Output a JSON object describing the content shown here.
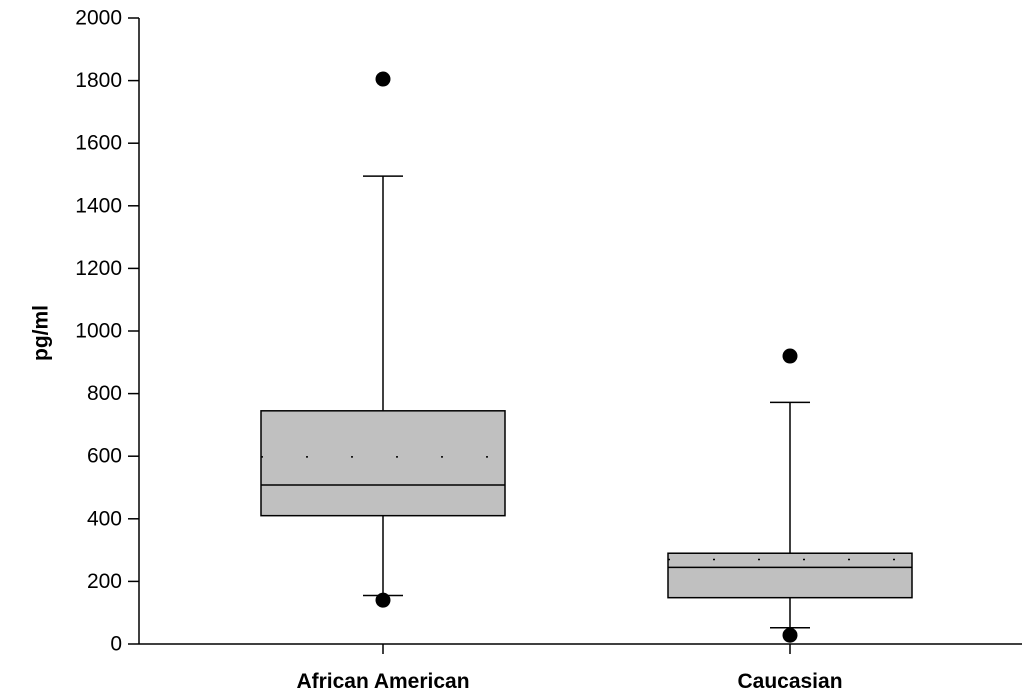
{
  "chart_data": {
    "type": "box",
    "title": "",
    "xlabel": "",
    "ylabel": "pg/ml",
    "ylim": [
      0,
      2000
    ],
    "yticks": [
      0,
      200,
      400,
      600,
      800,
      1000,
      1200,
      1400,
      1600,
      1800,
      2000
    ],
    "categories": [
      "African American",
      "Caucasian"
    ],
    "boxes": [
      {
        "category": "African American",
        "whisker_low": 155,
        "q1": 410,
        "median": 508,
        "mean": 598,
        "q3": 745,
        "whisker_high": 1495,
        "outliers": [
          1805,
          140
        ]
      },
      {
        "category": "Caucasian",
        "whisker_low": 52,
        "q1": 148,
        "median": 245,
        "mean": 270,
        "q3": 290,
        "whisker_high": 772,
        "outliers": [
          920,
          28
        ]
      }
    ],
    "box_fill": "#c0c0c0",
    "line_color": "#000000",
    "grid": false,
    "legend": "none"
  }
}
